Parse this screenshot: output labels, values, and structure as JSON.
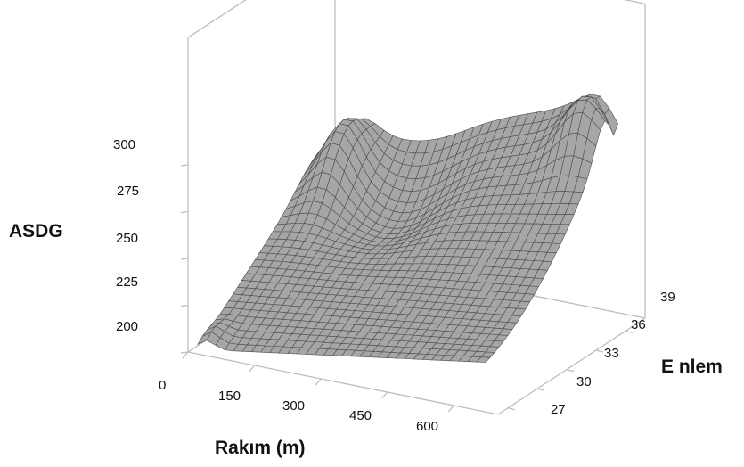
{
  "chart_data": {
    "type": "surface",
    "title": "",
    "zlabel": "ASDG",
    "xlabel": "Rakım (m)",
    "ylabel": "E nlem",
    "x_ticks": [
      "0",
      "150",
      "300",
      "450",
      "600"
    ],
    "y_ticks": [
      "27",
      "30",
      "33",
      "36",
      "39"
    ],
    "z_ticks": [
      "200",
      "225",
      "250",
      "275",
      "300"
    ],
    "xlim": [
      0,
      700
    ],
    "ylim": [
      26,
      41
    ],
    "zlim": [
      200,
      300
    ],
    "grid": false,
    "surface_color": "#a6a6a6",
    "mesh_color": "#4d4d4d",
    "frame_color": "#bdbdbd",
    "description_points": [
      {
        "x": 0,
        "y": 27,
        "z": 197
      },
      {
        "x": 0,
        "y": 39,
        "z": 265
      },
      {
        "x": 75,
        "y": 38,
        "z": 277
      },
      {
        "x": 300,
        "y": 39,
        "z": 248
      },
      {
        "x": 650,
        "y": 27,
        "z": 226
      },
      {
        "x": 650,
        "y": 38,
        "z": 291
      },
      {
        "x": 650,
        "y": 40,
        "z": 266
      }
    ]
  }
}
